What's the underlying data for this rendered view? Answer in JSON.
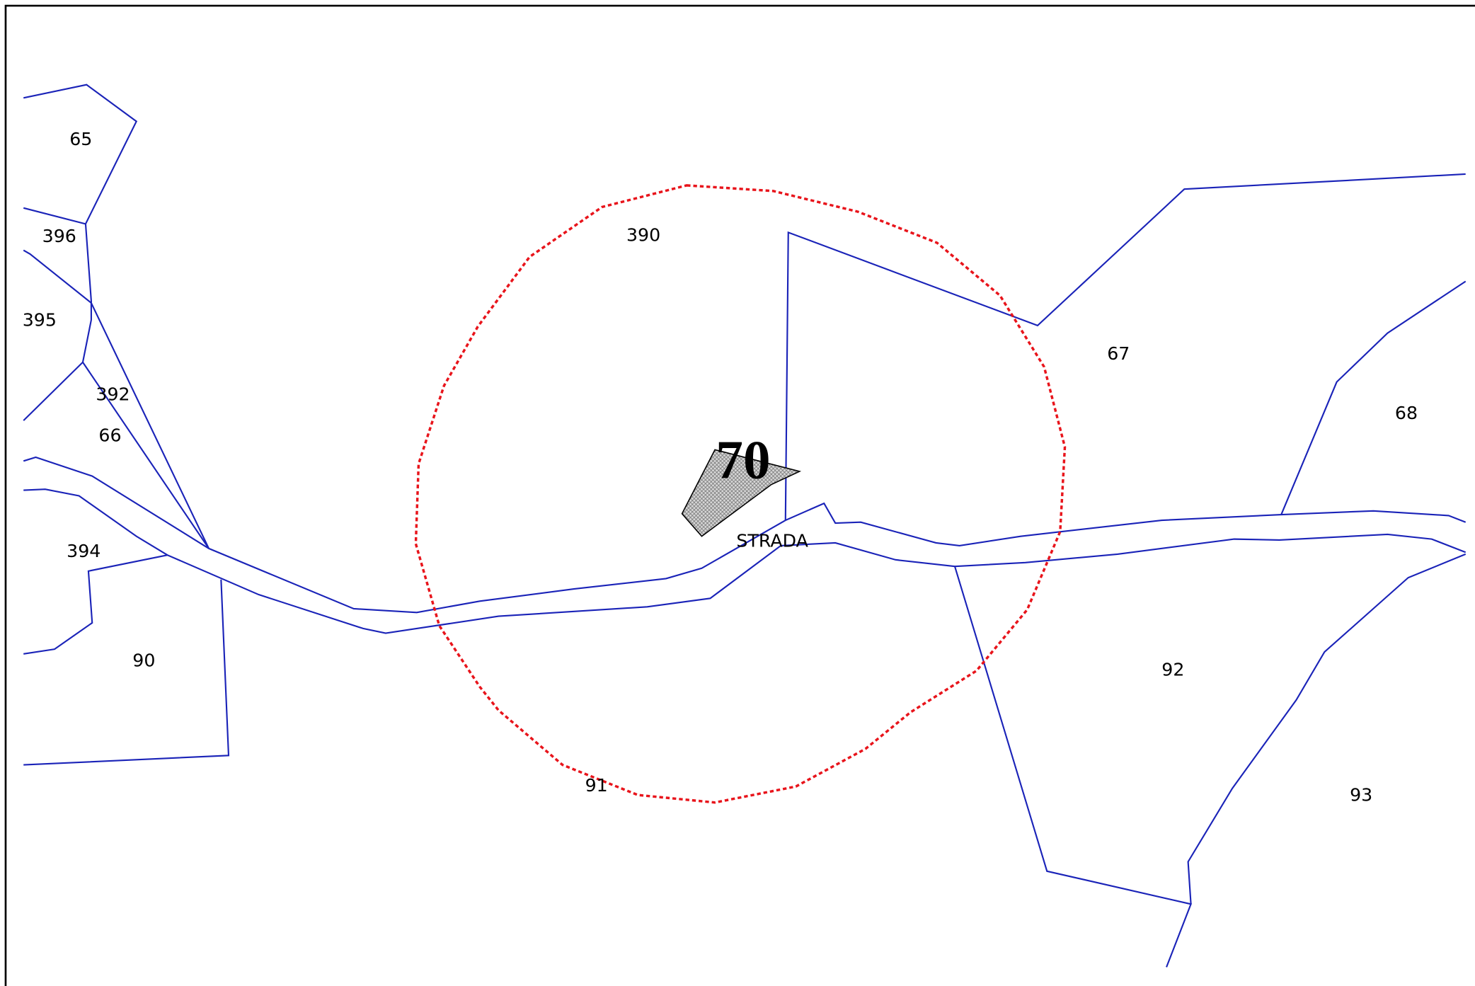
{
  "parcels": [
    {
      "label": "65"
    },
    {
      "label": "396"
    },
    {
      "label": "395"
    },
    {
      "label": "392"
    },
    {
      "label": "66"
    },
    {
      "label": "394"
    },
    {
      "label": "90"
    },
    {
      "label": "390"
    },
    {
      "label": "67"
    },
    {
      "label": "68"
    },
    {
      "label": "92"
    },
    {
      "label": "91"
    },
    {
      "label": "93"
    }
  ],
  "road": {
    "label": "STRADA"
  },
  "selected_parcel": {
    "label": "70"
  }
}
